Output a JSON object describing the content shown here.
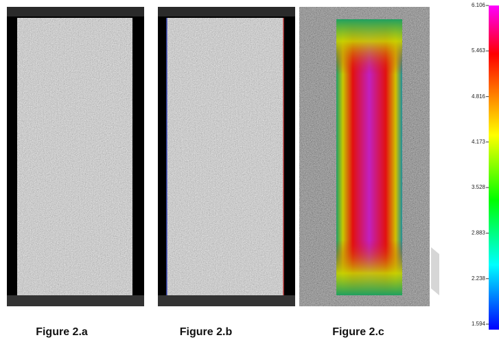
{
  "figures": [
    {
      "caption": "Figure 2.a"
    },
    {
      "caption": "Figure 2.b"
    },
    {
      "caption": "Figure 2.c"
    }
  ],
  "colorbar": {
    "ticks": [
      6.106,
      5.463,
      4.816,
      4.173,
      3.528,
      2.883,
      2.238,
      1.594
    ]
  }
}
